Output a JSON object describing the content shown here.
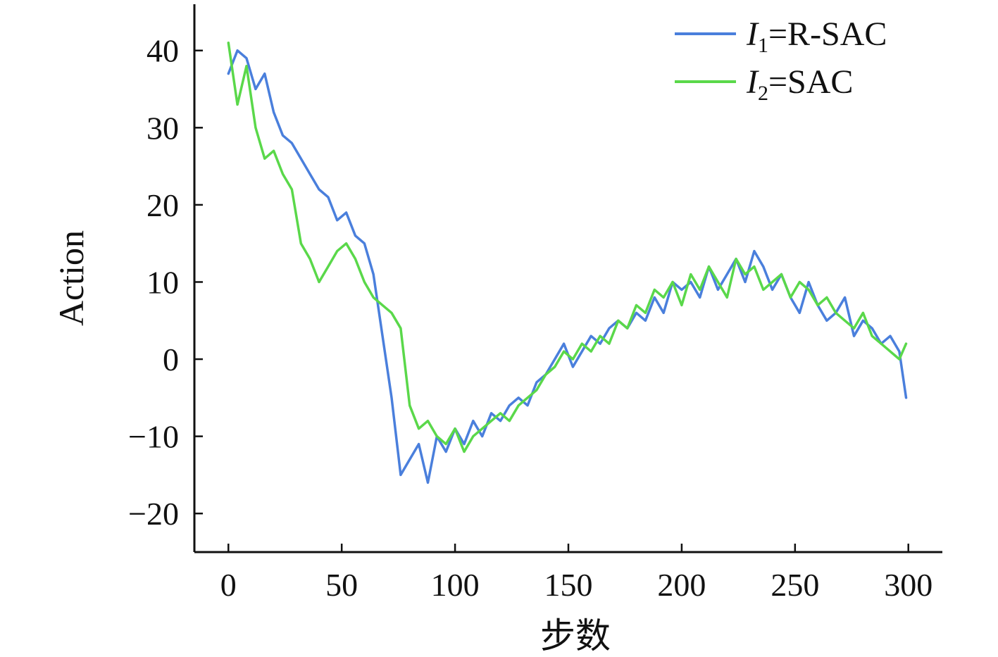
{
  "chart_data": {
    "type": "line",
    "title": "",
    "xlabel": "步数",
    "ylabel": "Action",
    "xlim": [
      -15,
      315
    ],
    "ylim": [
      -25,
      46
    ],
    "xticks": [
      0,
      50,
      100,
      150,
      200,
      250,
      300
    ],
    "xtick_labels": [
      "0",
      "50",
      "100",
      "150",
      "200",
      "250",
      "300"
    ],
    "yticks": [
      -20,
      -10,
      0,
      10,
      20,
      30,
      40
    ],
    "ytick_labels": [
      "−20",
      "−10",
      "0",
      "10",
      "20",
      "30",
      "40"
    ],
    "grid": false,
    "legend_position": "top-right",
    "series": [
      {
        "name": "I1=R-SAC",
        "legend_italic": "I",
        "legend_sub": "1",
        "legend_rest": "=R-SAC",
        "color": "#4a7fdc",
        "x": [
          0,
          4,
          8,
          12,
          16,
          20,
          24,
          28,
          32,
          36,
          40,
          44,
          48,
          52,
          56,
          60,
          64,
          68,
          72,
          76,
          80,
          84,
          88,
          92,
          96,
          100,
          104,
          108,
          112,
          116,
          120,
          124,
          128,
          132,
          136,
          140,
          144,
          148,
          152,
          156,
          160,
          164,
          168,
          172,
          176,
          180,
          184,
          188,
          192,
          196,
          200,
          204,
          208,
          212,
          216,
          220,
          224,
          228,
          232,
          236,
          240,
          244,
          248,
          252,
          256,
          260,
          264,
          268,
          272,
          276,
          280,
          284,
          288,
          292,
          296,
          299
        ],
        "y": [
          37,
          40,
          39,
          35,
          37,
          32,
          29,
          28,
          26,
          24,
          22,
          21,
          18,
          19,
          16,
          15,
          11,
          3,
          -5,
          -15,
          -13,
          -11,
          -16,
          -10,
          -12,
          -9,
          -11,
          -8,
          -10,
          -7,
          -8,
          -6,
          -5,
          -6,
          -3,
          -2,
          0,
          2,
          -1,
          1,
          3,
          2,
          4,
          5,
          4,
          6,
          5,
          8,
          6,
          10,
          9,
          10,
          8,
          12,
          9,
          11,
          13,
          10,
          14,
          12,
          9,
          11,
          8,
          6,
          10,
          7,
          5,
          6,
          8,
          3,
          5,
          4,
          2,
          3,
          1,
          -5
        ]
      },
      {
        "name": "I2=SAC",
        "legend_italic": "I",
        "legend_sub": "2",
        "legend_rest": "=SAC",
        "color": "#5ad84a",
        "x": [
          0,
          4,
          8,
          12,
          16,
          20,
          24,
          28,
          32,
          36,
          40,
          44,
          48,
          52,
          56,
          60,
          64,
          68,
          72,
          76,
          80,
          84,
          88,
          92,
          96,
          100,
          104,
          108,
          112,
          116,
          120,
          124,
          128,
          132,
          136,
          140,
          144,
          148,
          152,
          156,
          160,
          164,
          168,
          172,
          176,
          180,
          184,
          188,
          192,
          196,
          200,
          204,
          208,
          212,
          216,
          220,
          224,
          228,
          232,
          236,
          240,
          244,
          248,
          252,
          256,
          260,
          264,
          268,
          272,
          276,
          280,
          284,
          288,
          292,
          296,
          299
        ],
        "y": [
          41,
          33,
          38,
          30,
          26,
          27,
          24,
          22,
          15,
          13,
          10,
          12,
          14,
          15,
          13,
          10,
          8,
          7,
          6,
          4,
          -6,
          -9,
          -8,
          -10,
          -11,
          -9,
          -12,
          -10,
          -9,
          -8,
          -7,
          -8,
          -6,
          -5,
          -4,
          -2,
          -1,
          1,
          0,
          2,
          1,
          3,
          2,
          5,
          4,
          7,
          6,
          9,
          8,
          10,
          7,
          11,
          9,
          12,
          10,
          8,
          13,
          11,
          12,
          9,
          10,
          11,
          8,
          10,
          9,
          7,
          8,
          6,
          5,
          4,
          6,
          3,
          2,
          1,
          0,
          2
        ]
      }
    ]
  }
}
